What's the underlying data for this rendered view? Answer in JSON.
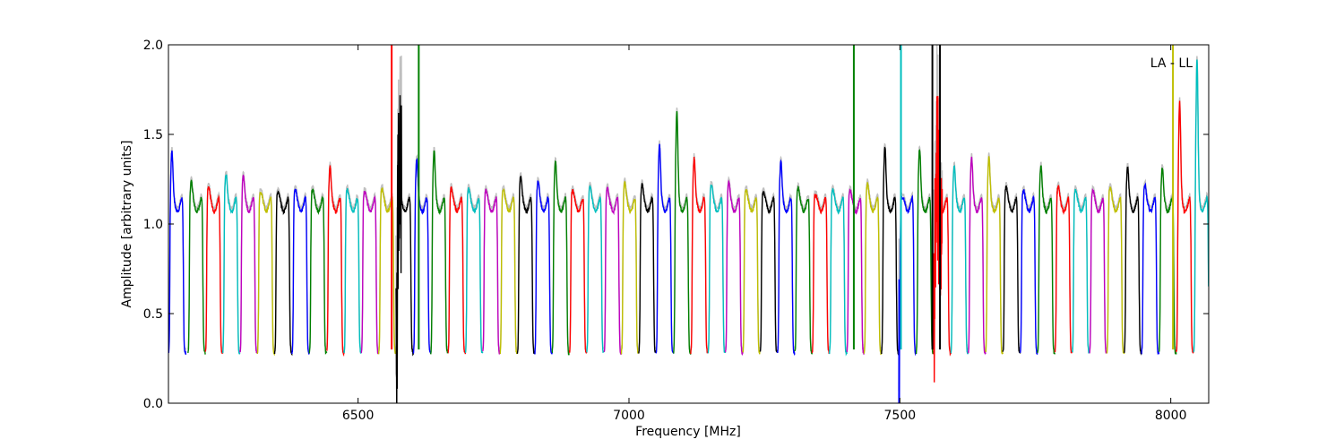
{
  "chart_data": {
    "type": "line",
    "title": "",
    "xlabel": "Frequency [MHz]",
    "ylabel": "Amplitude [arbitrary units]",
    "xlim": [
      6150,
      8070
    ],
    "ylim": [
      0.0,
      2.0
    ],
    "xticks": [
      6500,
      7000,
      7500,
      8000
    ],
    "xtick_labels": [
      "6500",
      "7000",
      "7500",
      "8000"
    ],
    "yticks": [
      0.0,
      0.5,
      1.0,
      1.5,
      2.0
    ],
    "ytick_labels": [
      "0.0",
      "0.5",
      "1.0",
      "1.5",
      "2.0"
    ],
    "grid": false,
    "annotation": "LA - LL",
    "raw_color": "#bfbfbf",
    "palette": [
      "#0000ff",
      "#008000",
      "#ff0000",
      "#00bfbf",
      "#bf00bf",
      "#bfbf00",
      "#000000"
    ],
    "channel_width_mhz": 32,
    "channels": [
      {
        "start": 6150,
        "peak": 1.42
      },
      {
        "start": 6186,
        "peak": 1.25
      },
      {
        "start": 6218,
        "peak": 1.22
      },
      {
        "start": 6250,
        "peak": 1.29
      },
      {
        "start": 6282,
        "peak": 1.28
      },
      {
        "start": 6314,
        "peak": 1.19
      },
      {
        "start": 6346,
        "peak": 1.19
      },
      {
        "start": 6378,
        "peak": 1.2
      },
      {
        "start": 6410,
        "peak": 1.2
      },
      {
        "start": 6442,
        "peak": 1.33
      },
      {
        "start": 6474,
        "peak": 1.2
      },
      {
        "start": 6506,
        "peak": 1.19
      },
      {
        "start": 6538,
        "peak": 1.21
      },
      {
        "start": 6570,
        "peak": 1.21,
        "rfi": [
          6559,
          6580
        ]
      },
      {
        "start": 6602,
        "peak": 1.37
      },
      {
        "start": 6634,
        "peak": 1.42,
        "rfi": [
          6611,
          6627
        ]
      },
      {
        "start": 6666,
        "peak": 1.21
      },
      {
        "start": 6698,
        "peak": 1.21
      },
      {
        "start": 6730,
        "peak": 1.2
      },
      {
        "start": 6762,
        "peak": 1.2
      },
      {
        "start": 6794,
        "peak": 1.28
      },
      {
        "start": 6826,
        "peak": 1.25
      },
      {
        "start": 6858,
        "peak": 1.36
      },
      {
        "start": 6890,
        "peak": 1.2
      },
      {
        "start": 6922,
        "peak": 1.22
      },
      {
        "start": 6954,
        "peak": 1.21
      },
      {
        "start": 6986,
        "peak": 1.24
      },
      {
        "start": 7018,
        "peak": 1.23
      },
      {
        "start": 7050,
        "peak": 1.45
      },
      {
        "start": 7082,
        "peak": 1.64,
        "rfi": [
          7066,
          7080
        ]
      },
      {
        "start": 7114,
        "peak": 1.38
      },
      {
        "start": 7146,
        "peak": 1.23
      },
      {
        "start": 7178,
        "peak": 1.24
      },
      {
        "start": 7210,
        "peak": 1.2
      },
      {
        "start": 7242,
        "peak": 1.19
      },
      {
        "start": 7274,
        "peak": 1.36
      },
      {
        "start": 7306,
        "peak": 1.21
      },
      {
        "start": 7338,
        "peak": 1.17
      },
      {
        "start": 7370,
        "peak": 1.2
      },
      {
        "start": 7402,
        "peak": 1.2
      },
      {
        "start": 7434,
        "peak": 1.24
      },
      {
        "start": 7466,
        "peak": 1.44
      },
      {
        "start": 7498,
        "peak": 1.16,
        "rfi": [
          7480,
          7500
        ]
      },
      {
        "start": 7530,
        "peak": 1.43
      },
      {
        "start": 7562,
        "peak": 1.35,
        "rfi": [
          7558,
          7578
        ]
      },
      {
        "start": 7594,
        "peak": 1.33
      },
      {
        "start": 7626,
        "peak": 1.38
      },
      {
        "start": 7658,
        "peak": 1.38
      },
      {
        "start": 7690,
        "peak": 1.22
      },
      {
        "start": 7722,
        "peak": 1.2
      },
      {
        "start": 7754,
        "peak": 1.34
      },
      {
        "start": 7786,
        "peak": 1.22
      },
      {
        "start": 7818,
        "peak": 1.2
      },
      {
        "start": 7850,
        "peak": 1.2
      },
      {
        "start": 7882,
        "peak": 1.22
      },
      {
        "start": 7914,
        "peak": 1.33
      },
      {
        "start": 7946,
        "peak": 1.23
      },
      {
        "start": 7978,
        "peak": 1.32
      },
      {
        "start": 8010,
        "peak": 1.69
      },
      {
        "start": 8042,
        "peak": 1.93
      }
    ],
    "spikes": [
      {
        "x": 6562,
        "color": "#ff0000"
      },
      {
        "x": 6612,
        "color": "#008000"
      },
      {
        "x": 7415,
        "color": "#008000"
      },
      {
        "x": 7502,
        "color": "#00bfbf"
      },
      {
        "x": 7560,
        "color": "#000000"
      },
      {
        "x": 7574,
        "color": "#000000"
      },
      {
        "x": 8004,
        "color": "#bfbf00"
      }
    ]
  }
}
